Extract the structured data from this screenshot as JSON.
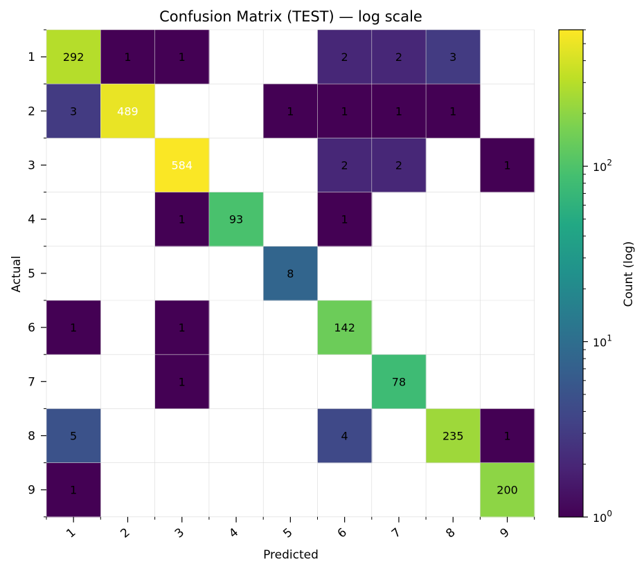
{
  "chart_data": {
    "type": "heatmap",
    "title": "Confusion Matrix (TEST) — log scale",
    "xlabel": "Predicted",
    "ylabel": "Actual",
    "x_categories": [
      "1",
      "2",
      "3",
      "4",
      "5",
      "6",
      "7",
      "8",
      "9"
    ],
    "y_categories": [
      "1",
      "2",
      "3",
      "4",
      "5",
      "6",
      "7",
      "8",
      "9"
    ],
    "values": [
      [
        292,
        1,
        1,
        0,
        0,
        2,
        2,
        3,
        0
      ],
      [
        3,
        489,
        0,
        0,
        1,
        1,
        1,
        1,
        0
      ],
      [
        0,
        0,
        584,
        0,
        0,
        2,
        2,
        0,
        1
      ],
      [
        0,
        0,
        1,
        93,
        0,
        1,
        0,
        0,
        0
      ],
      [
        0,
        0,
        0,
        0,
        8,
        0,
        0,
        0,
        0
      ],
      [
        1,
        0,
        1,
        0,
        0,
        142,
        0,
        0,
        0
      ],
      [
        0,
        0,
        1,
        0,
        0,
        0,
        78,
        0,
        0
      ],
      [
        5,
        0,
        0,
        0,
        0,
        4,
        0,
        235,
        1
      ],
      [
        1,
        0,
        0,
        0,
        0,
        0,
        0,
        0,
        200
      ]
    ],
    "zero_cells": "blank",
    "colormap": "viridis",
    "color_scale": "log",
    "colorbar": {
      "label": "Count (log)",
      "range": [
        1,
        600
      ],
      "ticks": [
        {
          "base": "10",
          "exp": "0",
          "value": 1
        },
        {
          "base": "10",
          "exp": "1",
          "value": 10
        },
        {
          "base": "10",
          "exp": "2",
          "value": 100
        }
      ]
    },
    "grid": true
  }
}
